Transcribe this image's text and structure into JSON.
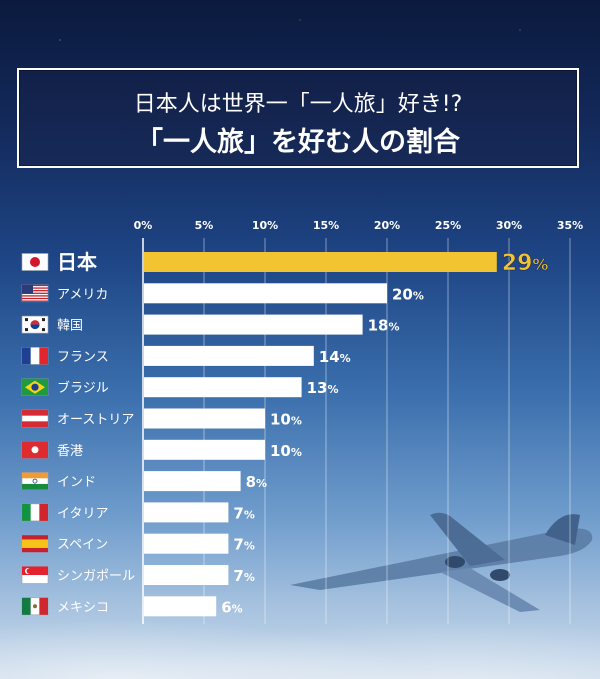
{
  "title": {
    "line1": "日本人は世界一「一人旅」好き!?",
    "line2": "「一人旅」を好む人の割合"
  },
  "chart_data": {
    "type": "bar",
    "orientation": "horizontal",
    "xlim": [
      0,
      35
    ],
    "ticks": [
      0,
      5,
      10,
      15,
      20,
      25,
      30,
      35
    ],
    "tick_suffix": "%",
    "value_suffix": "%",
    "grid": true,
    "highlight_color": "#f2c431",
    "bar_color": "#ffffff",
    "categories": [
      {
        "label": "日本",
        "value": 29,
        "flag": "japan-flag",
        "highlight": true
      },
      {
        "label": "アメリカ",
        "value": 20,
        "flag": "usa-flag"
      },
      {
        "label": "韓国",
        "value": 18,
        "flag": "korea-flag"
      },
      {
        "label": "フランス",
        "value": 14,
        "flag": "france-flag"
      },
      {
        "label": "ブラジル",
        "value": 13,
        "flag": "brazil-flag"
      },
      {
        "label": "オーストリア",
        "value": 10,
        "flag": "austria-flag"
      },
      {
        "label": "香港",
        "value": 10,
        "flag": "hongkong-flag"
      },
      {
        "label": "インド",
        "value": 8,
        "flag": "india-flag"
      },
      {
        "label": "イタリア",
        "value": 7,
        "flag": "italy-flag"
      },
      {
        "label": "スペイン",
        "value": 7,
        "flag": "spain-flag"
      },
      {
        "label": "シンガポール",
        "value": 7,
        "flag": "singapore-flag"
      },
      {
        "label": "メキシコ",
        "value": 6,
        "flag": "mexico-flag"
      }
    ]
  }
}
